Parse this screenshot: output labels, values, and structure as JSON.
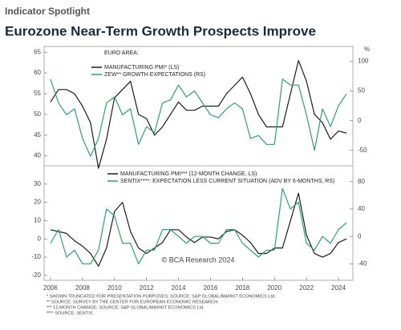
{
  "header": {
    "kicker": "Indicator Spotlight",
    "title": "Eurozone Near-Term Growth Prospects Improve"
  },
  "footnotes": [
    "* SHOWN TRUNCATED FOR PRESENTATION PURPOSES; SOURCE: S&P GLOBAL/MARKIT ECONOMICS Ltd.",
    "** SOURCE: SURVEY BY THE CENTER FOR EUROPEAN ECONOMIC RESEARCH.",
    "*** 12-MONTH CHANGE; SOURCE: S&P GLOBAL/MARKIT ECONOMICS Ltd.",
    "**** SOURCE: SENTIX."
  ],
  "chart_data": [
    {
      "type": "line",
      "annotation": "EURO AREA:",
      "y2label": "%",
      "x": [
        2006,
        2006.5,
        2007,
        2007.5,
        2008,
        2008.5,
        2009,
        2009.5,
        2010,
        2010.5,
        2011,
        2011.5,
        2012,
        2012.5,
        2013,
        2013.5,
        2014,
        2014.5,
        2015,
        2015.5,
        2016,
        2016.5,
        2017,
        2017.5,
        2018,
        2018.5,
        2019,
        2019.5,
        2020,
        2020.5,
        2021,
        2021.5,
        2022,
        2022.5,
        2023,
        2023.5,
        2024,
        2024.5
      ],
      "xlim": [
        2005.6,
        2024.9
      ],
      "ylim": [
        37.6,
        66.4
      ],
      "yticks": [
        40,
        45,
        50,
        55,
        60,
        65
      ],
      "y2lim": [
        -76,
        125
      ],
      "y2ticks": [
        -50,
        0,
        50,
        100
      ],
      "series": [
        {
          "name": "MANUFACTURING PMI* (LS)",
          "color": "#1c1c1c",
          "values": [
            53,
            56,
            56,
            55,
            52,
            48,
            37,
            44,
            54,
            56,
            58,
            50,
            49,
            45,
            47,
            50,
            53,
            51,
            51,
            52,
            52,
            52,
            55,
            57,
            59,
            55,
            50,
            47,
            47,
            47,
            55,
            63,
            58,
            50,
            48,
            44,
            46,
            45.5
          ]
        },
        {
          "name": "ZEW** GROWTH EXPECTATIONS (RS)",
          "color": "#2aa36b",
          "axis": "y2",
          "values": [
            70,
            30,
            10,
            20,
            -30,
            -60,
            -30,
            30,
            40,
            10,
            20,
            -40,
            -10,
            -20,
            30,
            35,
            60,
            40,
            50,
            30,
            10,
            5,
            20,
            30,
            20,
            -30,
            -25,
            -40,
            -40,
            70,
            60,
            60,
            10,
            -50,
            20,
            -10,
            25,
            45
          ]
        }
      ]
    },
    {
      "type": "line",
      "annotation": "© BCA Research 2024",
      "x": [
        2006,
        2006.5,
        2007,
        2007.5,
        2008,
        2008.5,
        2009,
        2009.5,
        2010,
        2010.5,
        2011,
        2011.5,
        2012,
        2012.5,
        2013,
        2013.5,
        2014,
        2014.5,
        2015,
        2015.5,
        2016,
        2016.5,
        2017,
        2017.5,
        2018,
        2018.5,
        2019,
        2019.5,
        2020,
        2020.5,
        2021,
        2021.5,
        2022,
        2022.5,
        2023,
        2023.5,
        2024,
        2024.5
      ],
      "xlim": [
        2005.6,
        2024.9
      ],
      "xticks": [
        2006,
        2008,
        2010,
        2012,
        2014,
        2016,
        2018,
        2020,
        2022,
        2024
      ],
      "ylim": [
        -22.7,
        40
      ],
      "yticks": [
        -20,
        -10,
        0,
        10,
        20,
        30
      ],
      "y2lim": [
        -64,
        103
      ],
      "y2ticks": [
        -40,
        0,
        40,
        80
      ],
      "series": [
        {
          "name": "MANUFACTURING PMI*** (12-MONTH CHANGE, LS)",
          "color": "#1c1c1c",
          "values": [
            5,
            4,
            3,
            -1,
            -4,
            -8,
            -15,
            -5,
            15,
            20,
            4,
            -5,
            -8,
            -5,
            -2,
            5,
            5,
            1,
            -2,
            1,
            1,
            0,
            4,
            5,
            2,
            -2,
            -8,
            -8,
            -5,
            -5,
            10,
            25,
            2,
            -8,
            -10,
            -8,
            -2,
            0
          ]
        },
        {
          "name": "SENTIX****: EXPECTATION LESS CURRENT SITUATION (ADV BY 6-MONTHS, RS)",
          "color": "#2aa36b",
          "axis": "y2",
          "values": [
            -10,
            10,
            -30,
            -20,
            -40,
            -40,
            -20,
            40,
            30,
            -10,
            -10,
            -40,
            -20,
            -20,
            10,
            10,
            0,
            -10,
            0,
            0,
            -10,
            -10,
            10,
            10,
            -10,
            -20,
            -30,
            -20,
            -20,
            70,
            40,
            50,
            -10,
            -20,
            0,
            -10,
            10,
            20
          ]
        }
      ]
    }
  ]
}
